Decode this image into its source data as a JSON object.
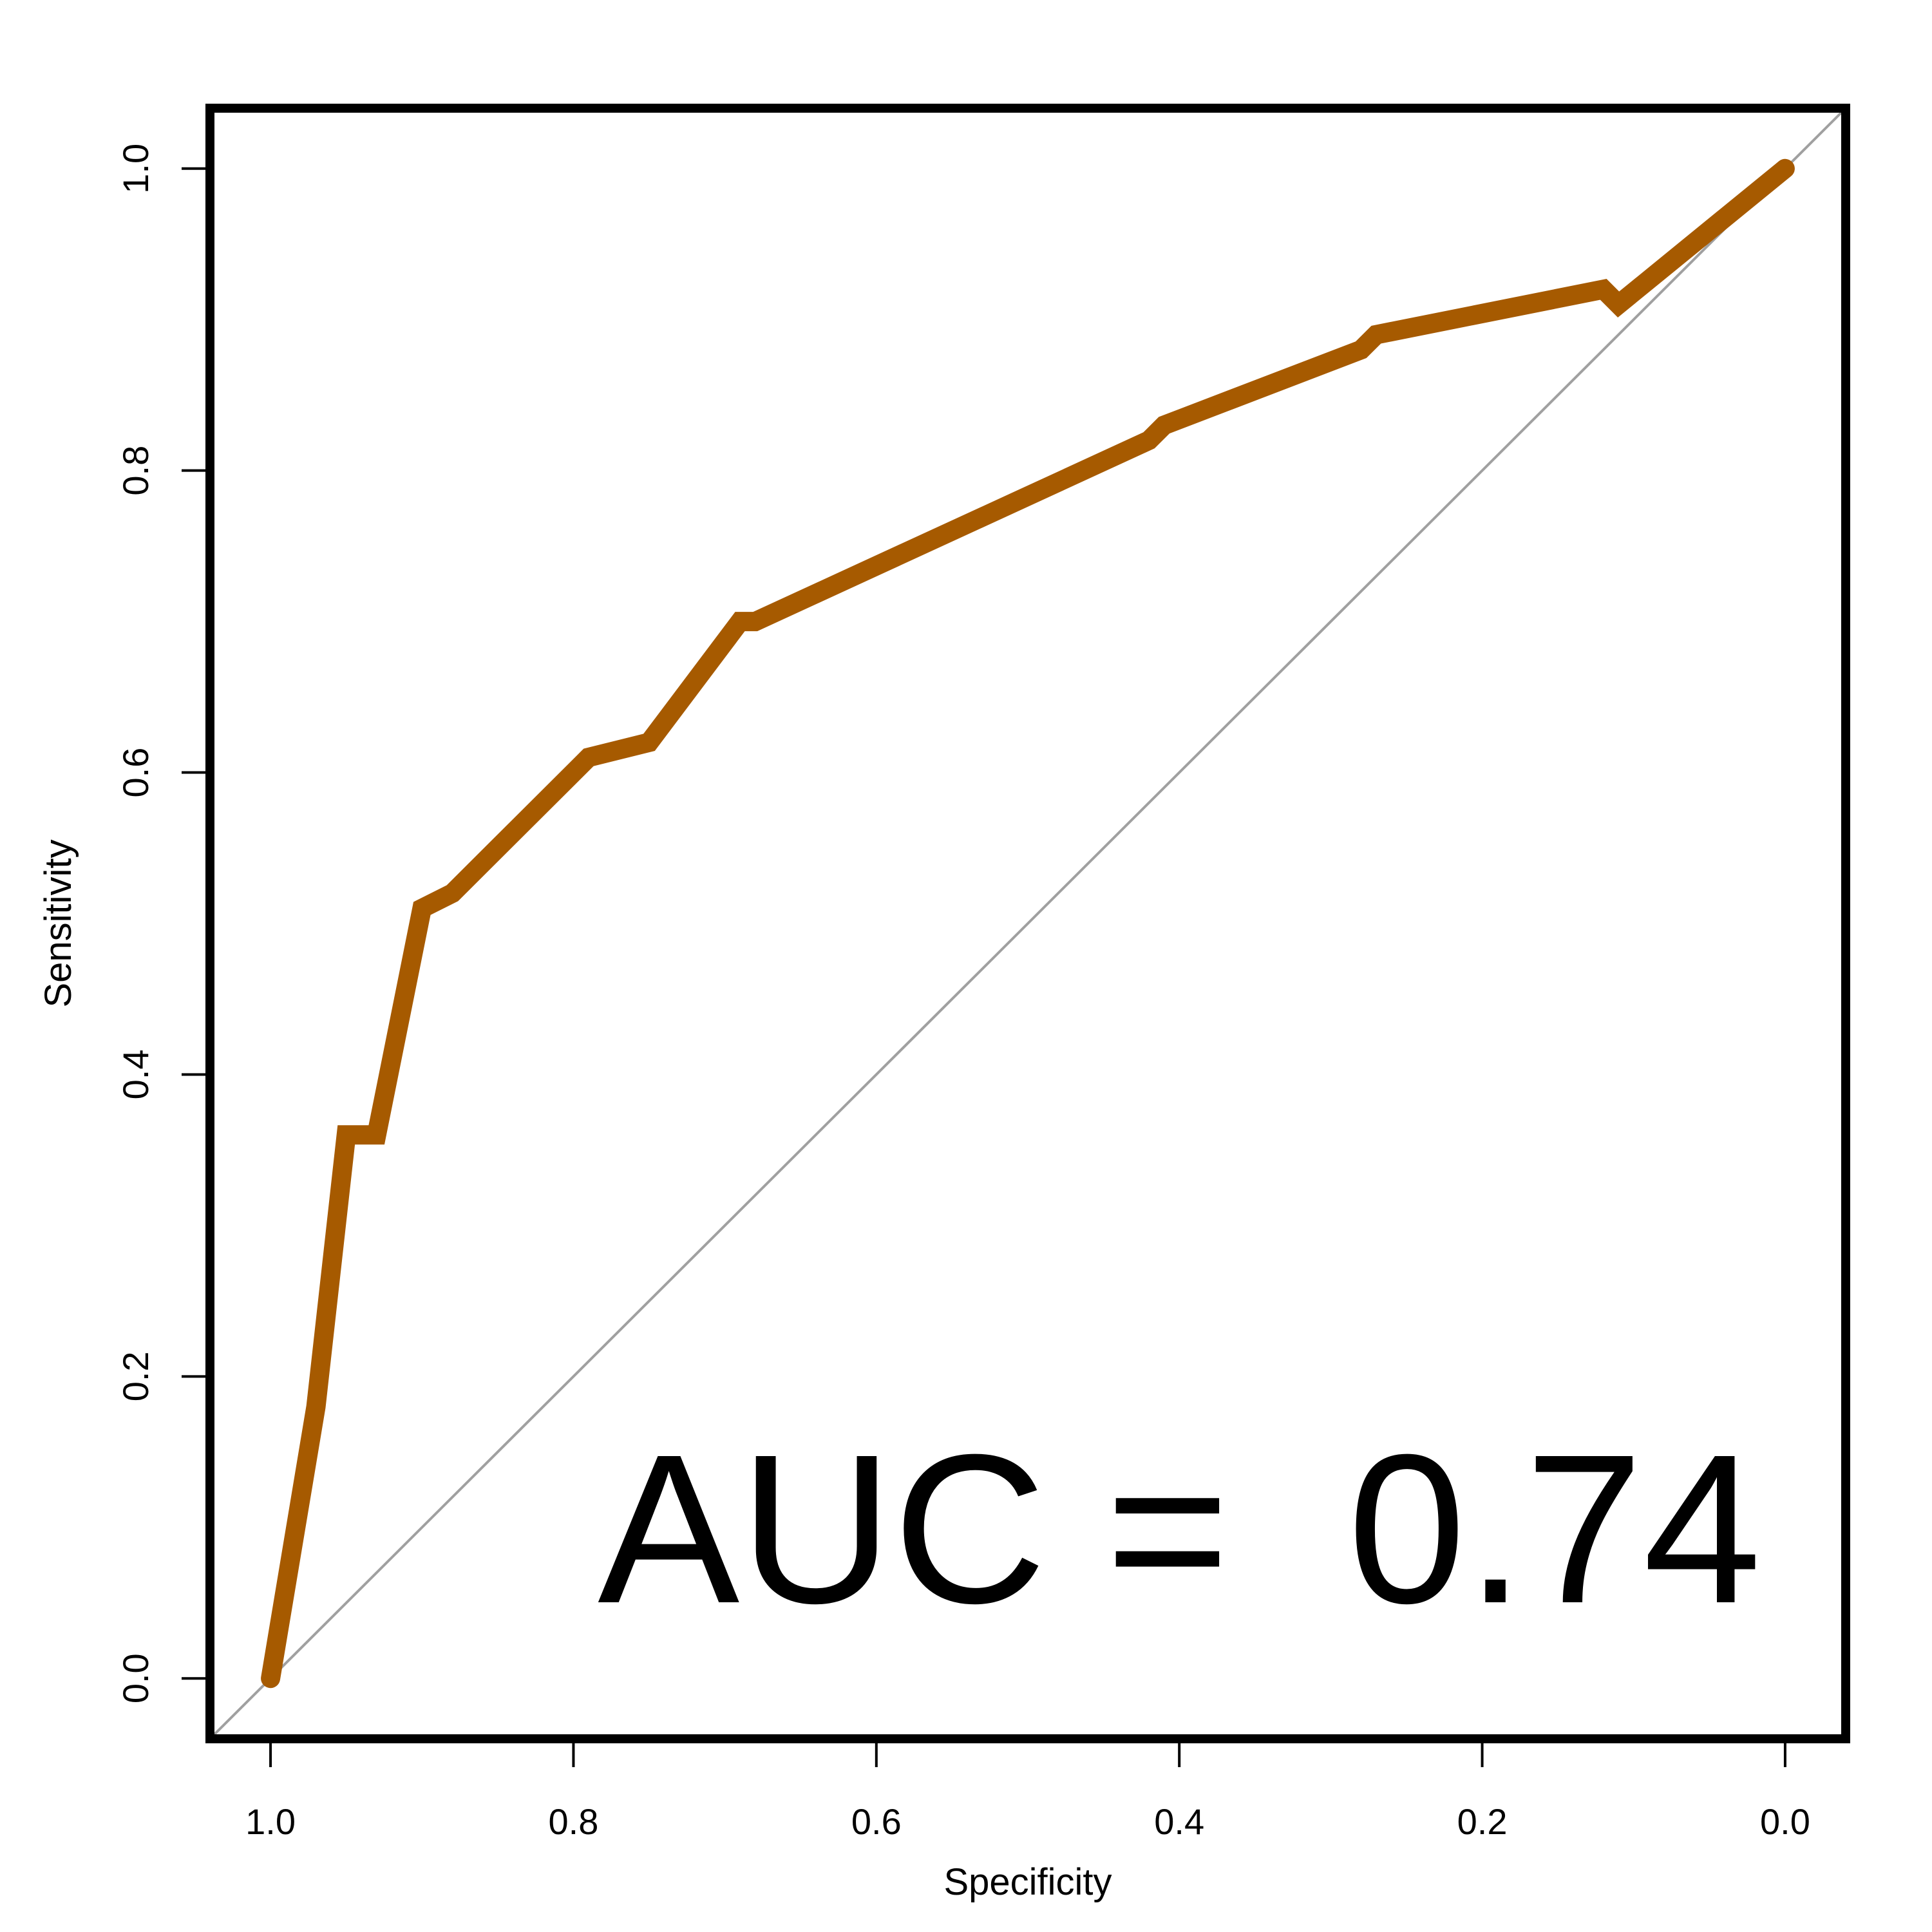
{
  "chart_data": {
    "type": "line",
    "title": "",
    "xlabel": "Specificity",
    "ylabel": "Sensitivity",
    "xlim": [
      1.04,
      -0.04
    ],
    "ylim": [
      -0.04,
      1.04
    ],
    "x_reversed": true,
    "xticks": [
      "1.0",
      "0.8",
      "0.6",
      "0.4",
      "0.2",
      "0.0"
    ],
    "yticks": [
      "0.0",
      "0.2",
      "0.4",
      "0.6",
      "0.8",
      "1.0"
    ],
    "series": [
      {
        "name": "",
        "color": "#A65A00",
        "specificity": [
          1.0,
          0.97,
          0.95,
          0.93,
          0.9,
          0.88,
          0.79,
          0.75,
          0.69,
          0.68,
          0.42,
          0.41,
          0.28,
          0.27,
          0.12,
          0.11,
          0.0
        ],
        "sensitivity": [
          0.0,
          0.18,
          0.36,
          0.36,
          0.51,
          0.52,
          0.61,
          0.62,
          0.7,
          0.7,
          0.82,
          0.83,
          0.88,
          0.89,
          0.92,
          0.91,
          1.0
        ]
      }
    ],
    "reference_line": {
      "from": [
        1.0,
        0.0
      ],
      "to": [
        0.0,
        1.0
      ],
      "color": "#A0A0A0"
    },
    "annotation": "AUC =  0.74",
    "grid": false,
    "legend": "none"
  }
}
